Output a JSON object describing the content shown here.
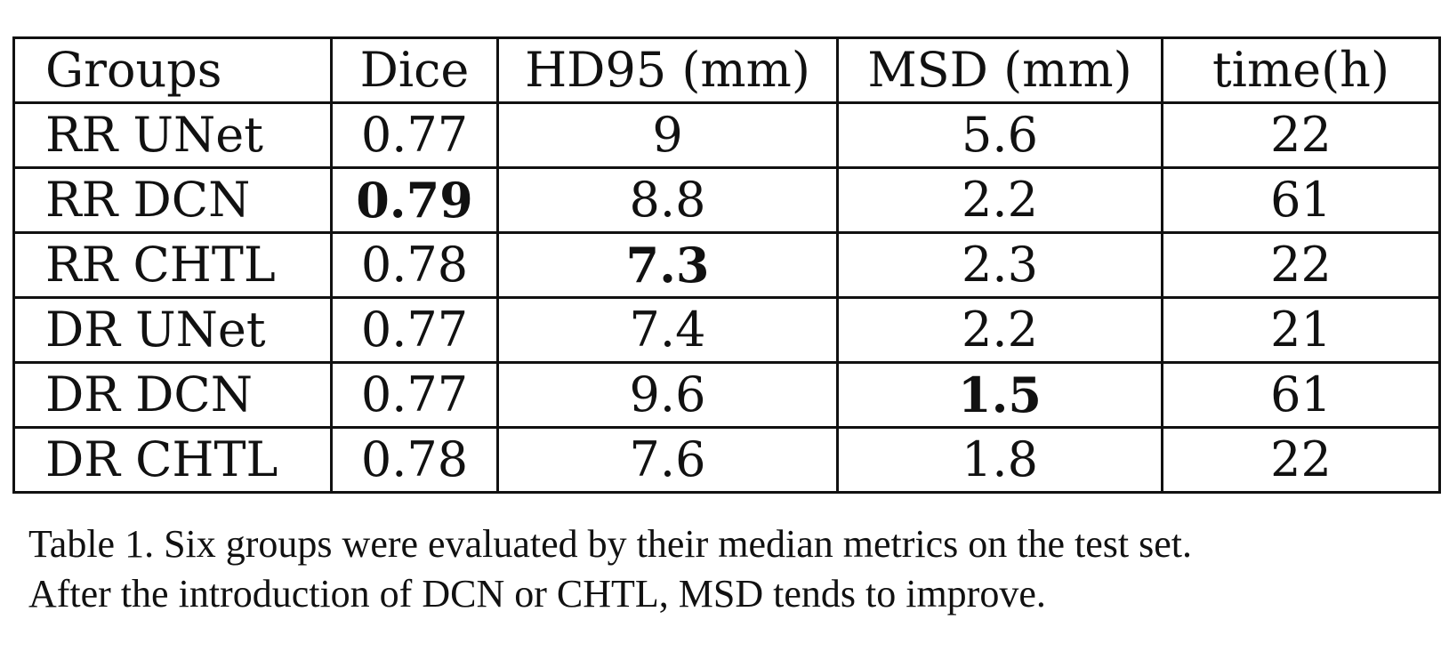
{
  "table": {
    "columns": [
      "Groups",
      "Dice",
      "HD95 (mm)",
      "MSD (mm)",
      "time(h)"
    ],
    "rows": [
      {
        "group": "RR UNet",
        "dice": "0.77",
        "hd95": "9",
        "msd": "5.6",
        "time": "22"
      },
      {
        "group": "RR DCN",
        "dice": "0.79",
        "hd95": "8.8",
        "msd": "2.2",
        "time": "61"
      },
      {
        "group": "RR CHTL",
        "dice": "0.78",
        "hd95": "7.3",
        "msd": "2.3",
        "time": "22"
      },
      {
        "group": "DR UNet",
        "dice": "0.77",
        "hd95": "7.4",
        "msd": "2.2",
        "time": "21"
      },
      {
        "group": "DR DCN",
        "dice": "0.77",
        "hd95": "9.6",
        "msd": "1.5",
        "time": "61"
      },
      {
        "group": "DR CHTL",
        "dice": "0.78",
        "hd95": "7.6",
        "msd": "1.8",
        "time": "22"
      }
    ],
    "bold_values": [
      "0.79",
      "7.3",
      "1.5"
    ]
  },
  "caption": {
    "line1": "Table 1. Six groups were evaluated by their median metrics on the test set.",
    "line2": "After the introduction of DCN or CHTL, MSD tends to improve."
  }
}
